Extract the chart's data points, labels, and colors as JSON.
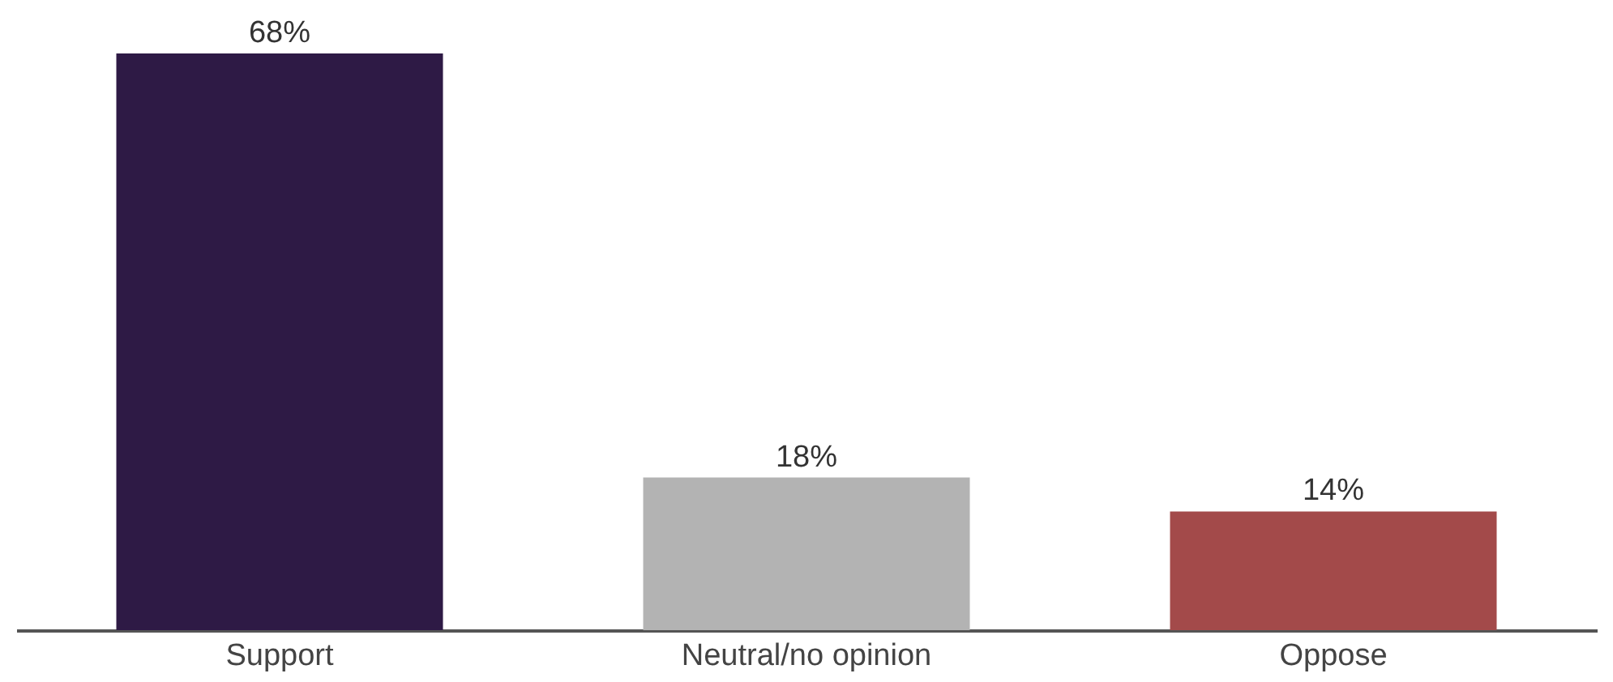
{
  "chart_data": {
    "type": "bar",
    "categories": [
      "Support",
      "Neutral/no opinion",
      "Oppose"
    ],
    "values": [
      68,
      18,
      14
    ],
    "colors": [
      "#2e1a45",
      "#b3b3b3",
      "#a34a4a"
    ],
    "value_labels": [
      "68%",
      "18%",
      "14%"
    ],
    "grid": false
  }
}
